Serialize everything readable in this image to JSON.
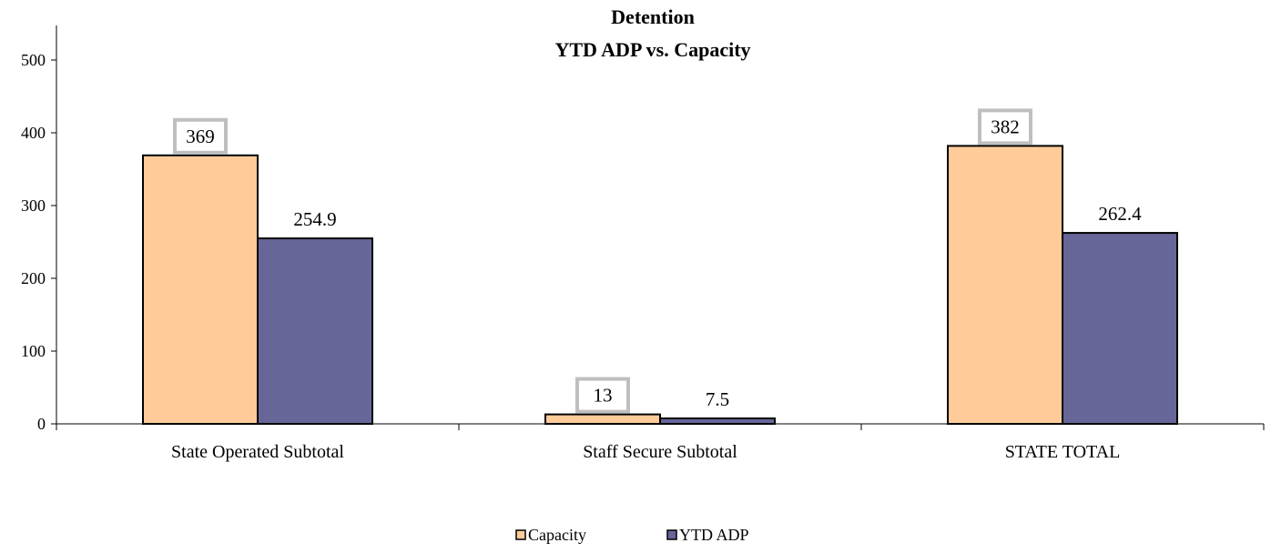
{
  "chart_data": {
    "type": "bar",
    "title": "Detention",
    "subtitle": "YTD ADP vs. Capacity",
    "categories": [
      "State Operated Subtotal",
      "Staff Secure Subtotal",
      "STATE TOTAL"
    ],
    "series": [
      {
        "name": "Capacity",
        "values": [
          369,
          13,
          382
        ],
        "labels": [
          "369",
          "13",
          "382"
        ],
        "color": "#FFCC99",
        "boxed_labels": true
      },
      {
        "name": "YTD ADP",
        "values": [
          254.9,
          7.5,
          262.4
        ],
        "labels": [
          "254.9",
          "7.5",
          "262.4"
        ],
        "color": "#666699",
        "boxed_labels": false
      }
    ],
    "yticks": [
      "0",
      "100",
      "200",
      "300",
      "400",
      "500"
    ],
    "ylim": [
      0,
      550
    ],
    "xlabel": "",
    "ylabel": "",
    "grid": false,
    "legend_position": "bottom"
  },
  "colors": {
    "capacity": "#FFCC99",
    "ytd_adp": "#666699",
    "label_box_border": "#BFBFBF",
    "axis": "#000000"
  }
}
